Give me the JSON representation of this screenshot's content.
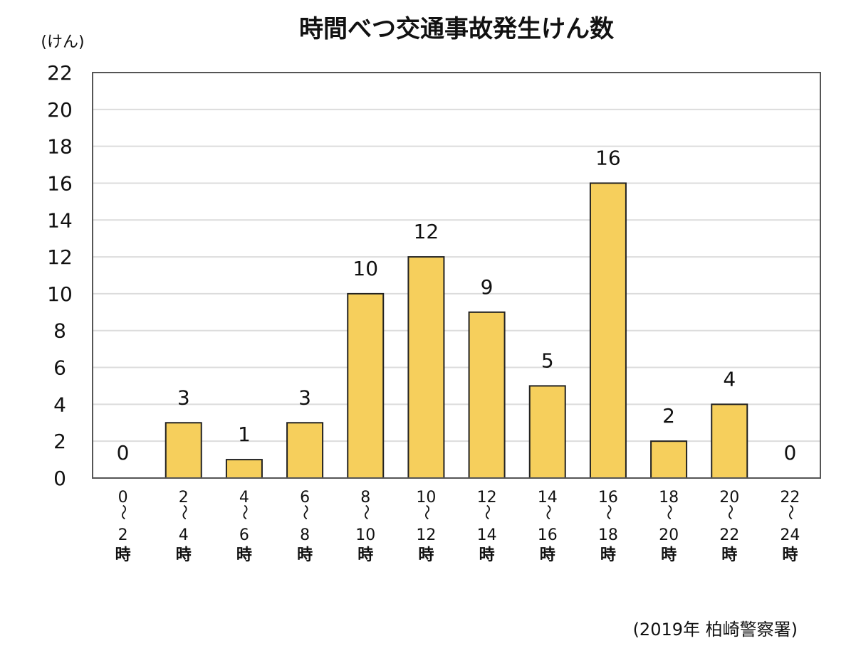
{
  "chart_data": {
    "type": "bar",
    "title": "時間べつ交通事故発生けん数",
    "ylabel": "(けん)",
    "xlabel": "",
    "source": "(2019年 柏崎警察署)",
    "ylim": [
      0,
      22
    ],
    "yticks": [
      "0",
      "2",
      "4",
      "6",
      "8",
      "10",
      "12",
      "14",
      "16",
      "18",
      "20",
      "22"
    ],
    "grid": true,
    "legend": "none",
    "categories": [
      {
        "start": "0",
        "end": "2",
        "unit": "時"
      },
      {
        "start": "2",
        "end": "4",
        "unit": "時"
      },
      {
        "start": "4",
        "end": "6",
        "unit": "時"
      },
      {
        "start": "6",
        "end": "8",
        "unit": "時"
      },
      {
        "start": "8",
        "end": "10",
        "unit": "時"
      },
      {
        "start": "10",
        "end": "12",
        "unit": "時"
      },
      {
        "start": "12",
        "end": "14",
        "unit": "時"
      },
      {
        "start": "14",
        "end": "16",
        "unit": "時"
      },
      {
        "start": "16",
        "end": "18",
        "unit": "時"
      },
      {
        "start": "18",
        "end": "20",
        "unit": "時"
      },
      {
        "start": "20",
        "end": "22",
        "unit": "時"
      },
      {
        "start": "22",
        "end": "24",
        "unit": "時"
      }
    ],
    "range_separator": "～",
    "values": [
      0,
      3,
      1,
      3,
      10,
      12,
      9,
      5,
      16,
      2,
      4,
      0
    ],
    "colors": {
      "bar_fill": "#f6cf5c",
      "bar_stroke": "#222222",
      "grid": "#dcdcdc",
      "frame": "#555555"
    }
  }
}
